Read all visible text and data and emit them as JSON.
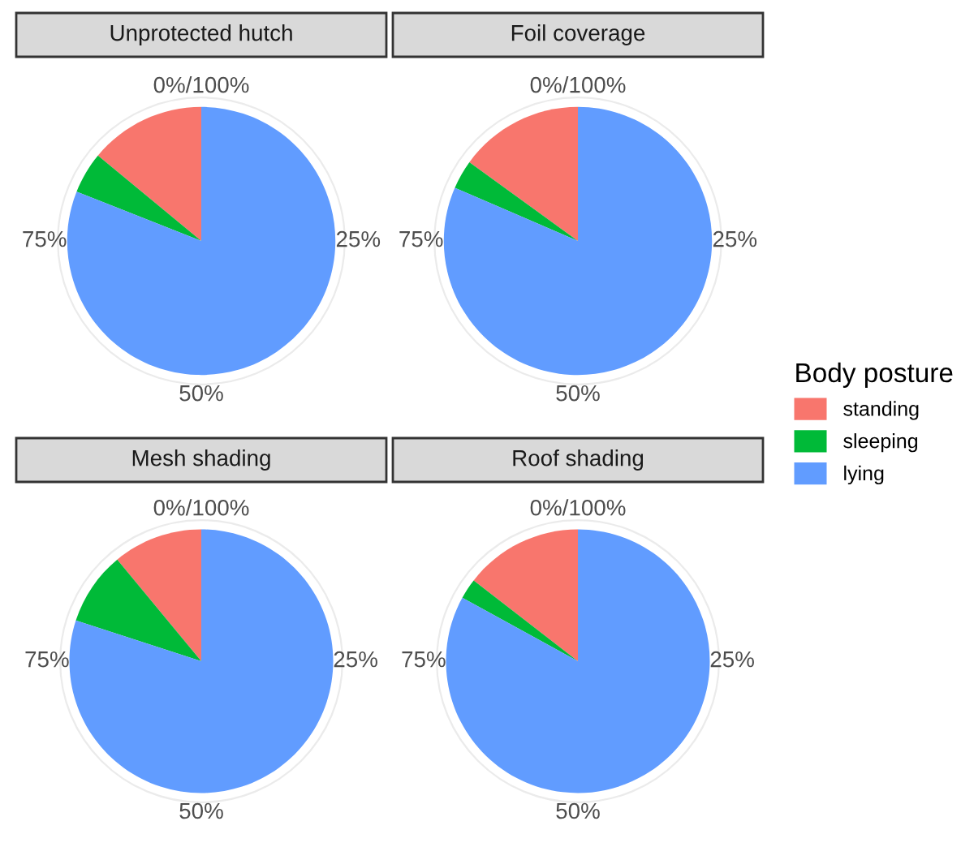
{
  "chart_data": [
    {
      "type": "pie",
      "title": "Unprotected hutch",
      "categories": [
        "standing",
        "sleeping",
        "lying"
      ],
      "values": [
        14,
        5,
        81
      ],
      "colors": [
        "#f8766d",
        "#00ba38",
        "#619cff"
      ],
      "annotations": [
        "0%/100%",
        "25%",
        "50%",
        "75%"
      ],
      "legend": "right",
      "legend_title": "Body posture"
    },
    {
      "type": "pie",
      "title": "Foil coverage",
      "categories": [
        null,
        null,
        null
      ],
      "values": [
        15,
        3.5,
        81.5
      ],
      "colors": [
        "#f8766d",
        "#00ba38",
        "#619cff"
      ],
      "annotations": [
        "0%/100%",
        "25%",
        "50%",
        "75%"
      ]
    },
    {
      "type": "pie",
      "title": "Mesh shading",
      "categories": [
        null,
        null,
        null
      ],
      "values": [
        11,
        9,
        80
      ],
      "colors": [
        "#f8766d",
        "#00ba38",
        "#619cff"
      ],
      "annotations": [
        "0%/100%",
        "25%",
        "50%",
        "75%"
      ]
    },
    {
      "type": "pie",
      "title": "Roof shading",
      "categories": [
        null,
        null,
        null
      ],
      "values": [
        14.5,
        2.5,
        83
      ],
      "colors": [
        "#f8766d",
        "#00ba38",
        "#619cff"
      ],
      "annotations": [
        "0%/100%",
        "25%",
        "50%",
        "75%"
      ]
    }
  ]
}
